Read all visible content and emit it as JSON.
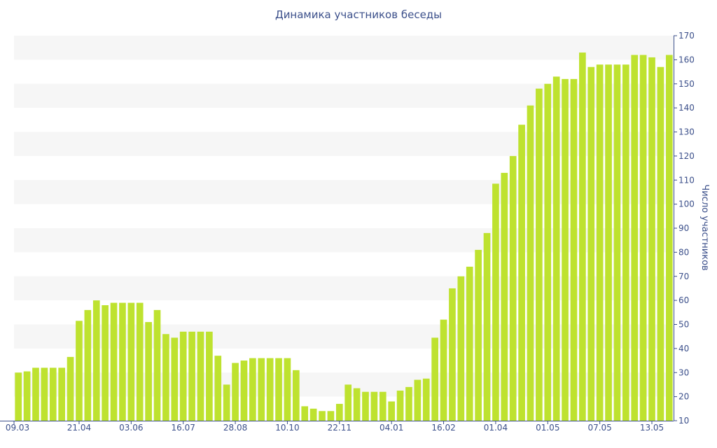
{
  "chart_data": {
    "type": "bar",
    "title": "Динамика участников беседы",
    "xlabel": "",
    "ylabel": "Число участников",
    "ylim": [
      10,
      170
    ],
    "y_ticks": [
      10,
      20,
      30,
      40,
      50,
      60,
      70,
      80,
      90,
      100,
      110,
      120,
      130,
      140,
      150,
      160,
      170
    ],
    "y_axis_side": "right",
    "grid": "alternating horizontal bands",
    "x_tick_labels": [
      "09.03",
      "21.04",
      "03.06",
      "16.07",
      "28.08",
      "10.10",
      "22.11",
      "04.01",
      "16.02",
      "01.04",
      "01.05",
      "07.05",
      "13.05"
    ],
    "x_tick_positions": [
      0,
      7,
      13,
      19,
      25,
      31,
      37,
      43,
      49,
      55,
      61,
      67,
      73
    ],
    "values": [
      30,
      30.5,
      32,
      32,
      32,
      32,
      36.5,
      51.5,
      56,
      60,
      58,
      59,
      59,
      59,
      59,
      51,
      56,
      46,
      44.5,
      47,
      47,
      47,
      47,
      37,
      25,
      34,
      35,
      36,
      36,
      36,
      36,
      36,
      31,
      16,
      15,
      14,
      14,
      17,
      25,
      23.5,
      22,
      22,
      22,
      18,
      22.5,
      24,
      27,
      27.5,
      44.5,
      52,
      65,
      70,
      74,
      81,
      88,
      108.5,
      113,
      120,
      133,
      141,
      148,
      150,
      153,
      152,
      152,
      163,
      157,
      158,
      158,
      158,
      158,
      162,
      162,
      161,
      157,
      162
    ],
    "colors": {
      "bar": "#bee22f",
      "band": "#f6f6f6",
      "text": "#3b4f8a",
      "axis": "#3b4f8a"
    }
  }
}
